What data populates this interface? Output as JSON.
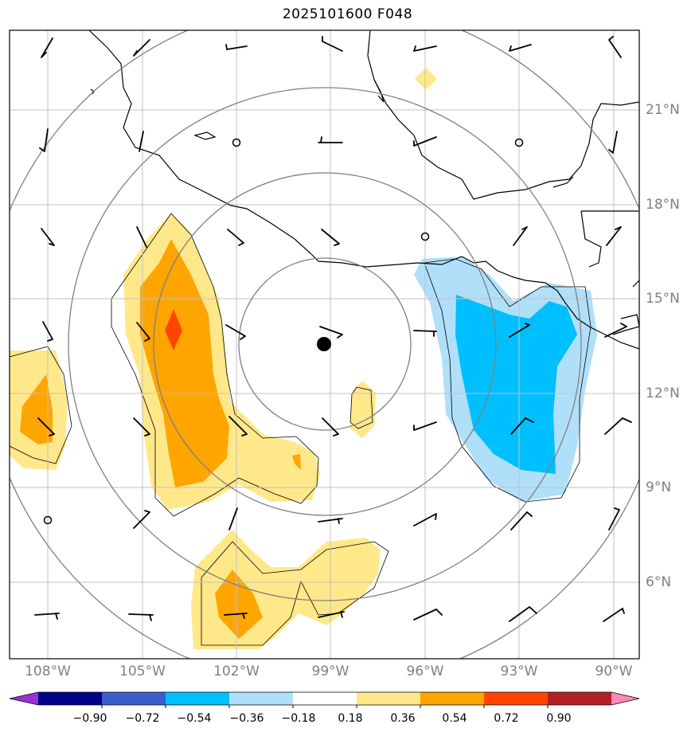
{
  "title": "2025101600 F048",
  "lon_labels": [
    "108°W",
    "105°W",
    "102°W",
    "99°W",
    "96°W",
    "93°W",
    "90°W"
  ],
  "lat_labels": [
    "21°N",
    "18°N",
    "15°N",
    "12°N",
    "9°N",
    "6°N"
  ],
  "colorbar": {
    "ticks": [
      "−0.90",
      "−0.72",
      "−0.54",
      "−0.36",
      "−0.18",
      "0.18",
      "0.36",
      "0.54",
      "0.72",
      "0.90"
    ],
    "colors": [
      "#9b30d9",
      "#00008b",
      "#3a5fcd",
      "#00bfff",
      "#b0dffa",
      "#ffffff",
      "#ffe88a",
      "#ffa500",
      "#ff4500",
      "#b22222",
      "#ff88bb"
    ]
  },
  "colors": {
    "light_yellow": "#ffe88a",
    "orange": "#ffa500",
    "red_orange": "#ff4500",
    "light_blue": "#b0dffa",
    "blue": "#00bfff",
    "grid": "#c0c0c0",
    "range_ring": "#808080"
  },
  "map": {
    "center_marker": "storm-center-dot",
    "range_ring_count": 4
  }
}
